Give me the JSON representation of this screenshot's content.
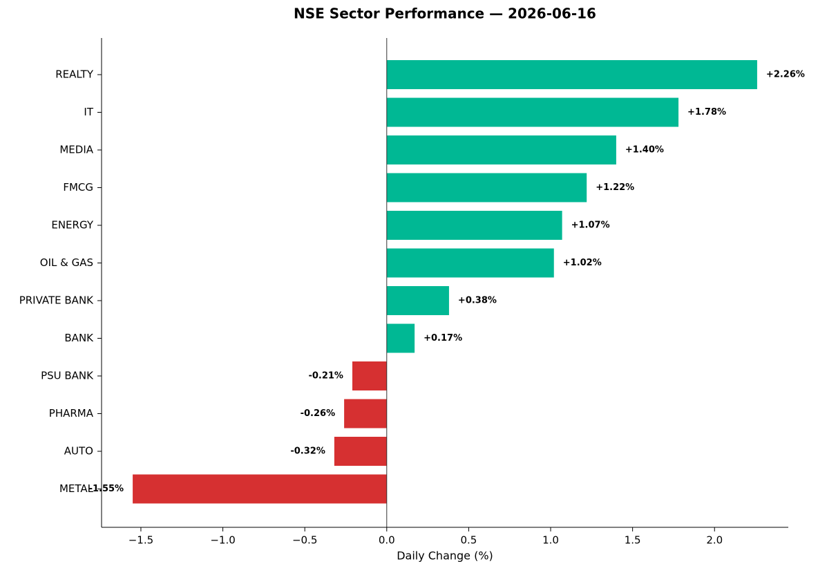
{
  "chart_data": {
    "type": "hbar",
    "title": "NSE Sector Performance — 2026-06-16",
    "xlabel": "Daily Change (%)",
    "categories": [
      "REALTY",
      "IT",
      "MEDIA",
      "FMCG",
      "ENERGY",
      "OIL & GAS",
      "PRIVATE BANK",
      "BANK",
      "PSU BANK",
      "PHARMA",
      "AUTO",
      "METAL"
    ],
    "values": [
      2.26,
      1.78,
      1.4,
      1.22,
      1.07,
      1.02,
      0.38,
      0.17,
      -0.21,
      -0.26,
      -0.32,
      -1.55
    ],
    "value_labels": [
      "+2.26%",
      "+1.78%",
      "+1.40%",
      "+1.22%",
      "+1.07%",
      "+1.02%",
      "+0.38%",
      "+0.17%",
      "-0.21%",
      "-0.26%",
      "-0.32%",
      "-1.55%"
    ],
    "positive_color": "#00b894",
    "negative_color": "#d63031",
    "xlim": [
      -1.74,
      2.45
    ],
    "xticks": [
      {
        "value": -1.5,
        "label": "−1.5"
      },
      {
        "value": -1.0,
        "label": "−1.0"
      },
      {
        "value": -0.5,
        "label": "−0.5"
      },
      {
        "value": 0,
        "label": "0.0"
      },
      {
        "value": 0.5,
        "label": "0.5"
      },
      {
        "value": 1.0,
        "label": "1.0"
      },
      {
        "value": 1.5,
        "label": "1.5"
      },
      {
        "value": 2.0,
        "label": "2.0"
      }
    ]
  }
}
